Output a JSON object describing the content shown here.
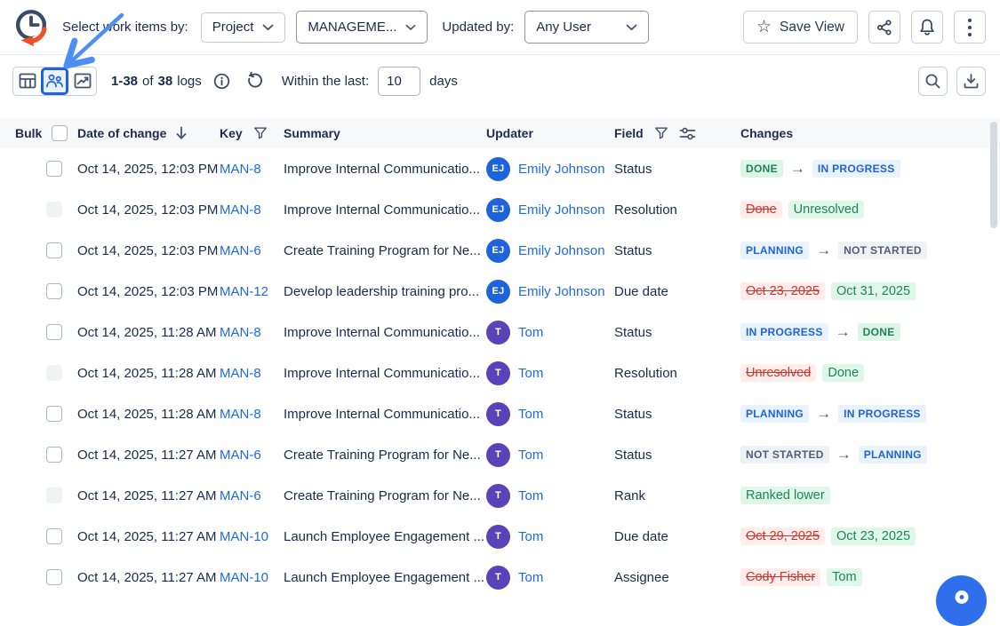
{
  "topbar": {
    "select_label": "Select work items by:",
    "scope_dropdown": {
      "value": "Project"
    },
    "project_dropdown": {
      "value": "MANAGEME..."
    },
    "updated_by_label": "Updated by:",
    "user_dropdown": {
      "value": "Any User"
    },
    "save_view_label": "Save View",
    "star_glyph": "☆"
  },
  "toolbar": {
    "count": {
      "range": "1-38",
      "of": "of",
      "total": "38",
      "unit": "logs"
    },
    "within_label": "Within the last:",
    "days_value": "10",
    "days_label": "days"
  },
  "table": {
    "headers": {
      "bulk": "Bulk",
      "date": "Date of change",
      "key": "Key",
      "summary": "Summary",
      "updater": "Updater",
      "field": "Field",
      "changes": "Changes"
    },
    "rows": [
      {
        "date": "Oct 14, 2025, 12:03 PM",
        "key": "MAN-8",
        "summary": "Improve Internal Communicatio...",
        "updater": "Emily Johnson",
        "initials": "EJ",
        "avatar_color": "#1D63DC",
        "field": "Status",
        "checkbox_disabled": false,
        "change": {
          "type": "transition",
          "from": {
            "text": "DONE",
            "variant": "green"
          },
          "to": {
            "text": "IN PROGRESS",
            "variant": "blue"
          }
        }
      },
      {
        "date": "Oct 14, 2025, 12:03 PM",
        "key": "MAN-8",
        "summary": "Improve Internal Communicatio...",
        "updater": "Emily Johnson",
        "initials": "EJ",
        "avatar_color": "#1D63DC",
        "field": "Resolution",
        "checkbox_disabled": true,
        "change": {
          "type": "replace",
          "old": "Done",
          "new": "Unresolved"
        }
      },
      {
        "date": "Oct 14, 2025, 12:03 PM",
        "key": "MAN-6",
        "summary": "Create Training Program for Ne...",
        "updater": "Emily Johnson",
        "initials": "EJ",
        "avatar_color": "#1D63DC",
        "field": "Status",
        "checkbox_disabled": false,
        "change": {
          "type": "transition",
          "from": {
            "text": "PLANNING",
            "variant": "blue"
          },
          "to": {
            "text": "NOT STARTED",
            "variant": "gray"
          }
        }
      },
      {
        "date": "Oct 14, 2025, 12:03 PM",
        "key": "MAN-12",
        "summary": "Develop leadership training pro...",
        "updater": "Emily Johnson",
        "initials": "EJ",
        "avatar_color": "#1D63DC",
        "field": "Due date",
        "checkbox_disabled": false,
        "change": {
          "type": "replace",
          "old": "Oct 23, 2025",
          "new": "Oct 31, 2025"
        }
      },
      {
        "date": "Oct 14, 2025, 11:28 AM",
        "key": "MAN-8",
        "summary": "Improve Internal Communicatio...",
        "updater": "Tom",
        "initials": "T",
        "avatar_color": "#5A43B8",
        "field": "Status",
        "checkbox_disabled": false,
        "change": {
          "type": "transition",
          "from": {
            "text": "IN PROGRESS",
            "variant": "blue"
          },
          "to": {
            "text": "DONE",
            "variant": "green"
          }
        }
      },
      {
        "date": "Oct 14, 2025, 11:28 AM",
        "key": "MAN-8",
        "summary": "Improve Internal Communicatio...",
        "updater": "Tom",
        "initials": "T",
        "avatar_color": "#5A43B8",
        "field": "Resolution",
        "checkbox_disabled": true,
        "change": {
          "type": "replace",
          "old": "Unresolved",
          "new": "Done"
        }
      },
      {
        "date": "Oct 14, 2025, 11:28 AM",
        "key": "MAN-8",
        "summary": "Improve Internal Communicatio...",
        "updater": "Tom",
        "initials": "T",
        "avatar_color": "#5A43B8",
        "field": "Status",
        "checkbox_disabled": false,
        "change": {
          "type": "transition",
          "from": {
            "text": "PLANNING",
            "variant": "blue"
          },
          "to": {
            "text": "IN PROGRESS",
            "variant": "blue"
          }
        }
      },
      {
        "date": "Oct 14, 2025, 11:27 AM",
        "key": "MAN-6",
        "summary": "Create Training Program for Ne...",
        "updater": "Tom",
        "initials": "T",
        "avatar_color": "#5A43B8",
        "field": "Status",
        "checkbox_disabled": false,
        "change": {
          "type": "transition",
          "from": {
            "text": "NOT STARTED",
            "variant": "gray"
          },
          "to": {
            "text": "PLANNING",
            "variant": "blue"
          }
        }
      },
      {
        "date": "Oct 14, 2025, 11:27 AM",
        "key": "MAN-6",
        "summary": "Create Training Program for Ne...",
        "updater": "Tom",
        "initials": "T",
        "avatar_color": "#5A43B8",
        "field": "Rank",
        "checkbox_disabled": true,
        "change": {
          "type": "single",
          "new": "Ranked lower"
        }
      },
      {
        "date": "Oct 14, 2025, 11:27 AM",
        "key": "MAN-10",
        "summary": "Launch Employee Engagement ...",
        "updater": "Tom",
        "initials": "T",
        "avatar_color": "#5A43B8",
        "field": "Due date",
        "checkbox_disabled": false,
        "change": {
          "type": "replace",
          "old": "Oct 29, 2025",
          "new": "Oct 23, 2025"
        }
      },
      {
        "date": "Oct 14, 2025, 11:27 AM",
        "key": "MAN-10",
        "summary": "Launch Employee Engagement ...",
        "updater": "Tom",
        "initials": "T",
        "avatar_color": "#5A43B8",
        "field": "Assignee",
        "checkbox_disabled": false,
        "change": {
          "type": "replace",
          "old": "Cody Fisher",
          "new": "Tom"
        }
      }
    ]
  },
  "colors": {
    "accent_blue": "#1D63DC",
    "link_blue": "#1D6AE5",
    "badge_green_text": "#1F845A",
    "badge_green_bg": "#DCF5E7",
    "badge_blue_bg": "#E9F2FF",
    "badge_gray_text": "#505F79",
    "badge_gray_bg": "#F0F1F4",
    "removed_red_text": "#C9372C",
    "removed_red_bg": "#FFECEB",
    "added_green_bg": "#DFF7E9",
    "avatar_blue": "#1D63DC",
    "avatar_purple": "#5A43B8",
    "logo_navy": "#3A4B66",
    "logo_orange": "#F04E23",
    "annotation_arrow_blue": "#4B8FF5",
    "fab_blue": "#2F6FEB"
  }
}
